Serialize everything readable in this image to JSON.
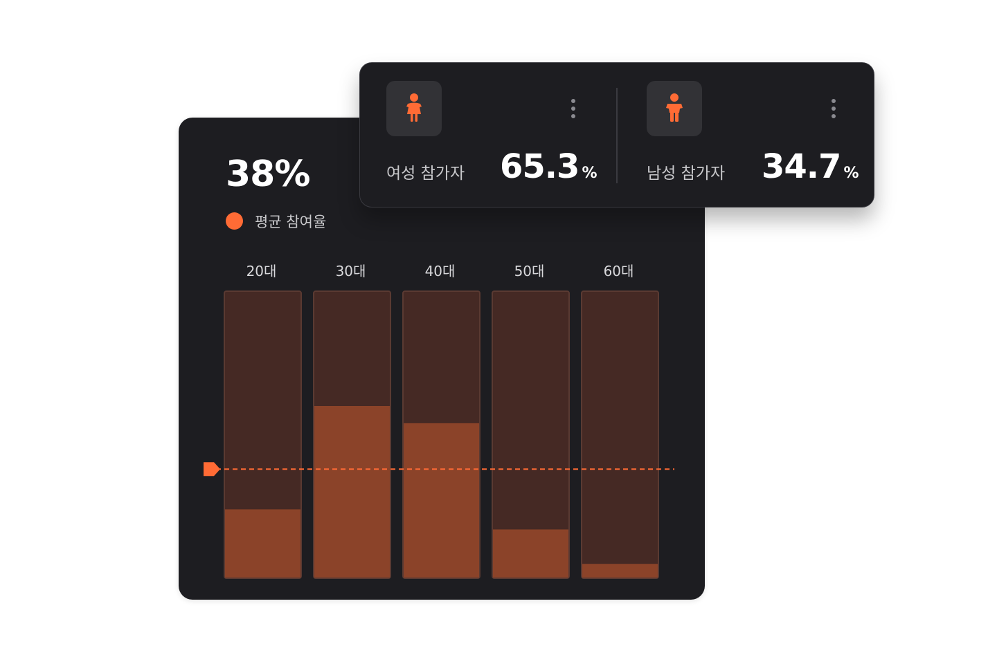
{
  "summary": {
    "value": "38%",
    "legend_label": "평균 참여율"
  },
  "colors": {
    "accent": "#ff6b35",
    "bar_bg": "#452924",
    "bar_fill": "#8b4329",
    "bar_border": "#5a3a32",
    "card_bg": "#1d1d21"
  },
  "chart_data": {
    "type": "bar",
    "categories": [
      "20대",
      "30대",
      "40대",
      "50대",
      "60대"
    ],
    "values": [
      24,
      60,
      54,
      17,
      5
    ],
    "ylim": [
      0,
      100
    ],
    "average": 38,
    "average_label": "평균 참여율",
    "title": "",
    "xlabel": "",
    "ylabel": "",
    "grid": false
  },
  "stats": [
    {
      "label": "여성 참가자",
      "value": "65.3",
      "unit": "%",
      "icon": "girl-icon"
    },
    {
      "label": "남성 참가자",
      "value": "34.7",
      "unit": "%",
      "icon": "boy-icon"
    }
  ]
}
